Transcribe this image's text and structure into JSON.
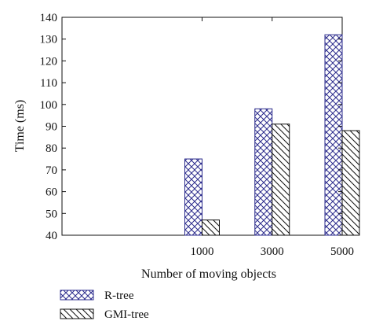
{
  "chart_data": {
    "type": "bar",
    "title": "",
    "xlabel": "Number of moving objects",
    "ylabel": "Time (ms)",
    "categories": [
      "1000",
      "3000",
      "5000"
    ],
    "x_axis_extent": [
      0,
      4
    ],
    "x_positions": [
      2,
      3,
      4
    ],
    "ylim": [
      40,
      140
    ],
    "yticks": [
      40,
      50,
      60,
      70,
      80,
      90,
      100,
      110,
      120,
      130,
      140
    ],
    "grid": false,
    "legend_position": "bottom-left, below the plot",
    "series": [
      {
        "name": "R-tree",
        "values": [
          75,
          98,
          132
        ],
        "pattern": "cross-hatch",
        "color": "#2b2b8c"
      },
      {
        "name": "GMI-tree",
        "values": [
          47,
          91,
          88
        ],
        "pattern": "diagonal-hatch",
        "color": "#111111"
      }
    ]
  }
}
